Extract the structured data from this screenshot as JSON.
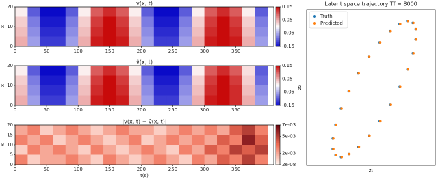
{
  "chart_data": [
    {
      "type": "heatmap",
      "title": "v(x, t)",
      "ylabel": "x",
      "colormap": "bwr",
      "xlim": [
        0,
        410
      ],
      "xticks": [
        0,
        50,
        100,
        150,
        200,
        250,
        300,
        350
      ],
      "ylim": [
        0,
        20
      ],
      "yticks": [
        0,
        10,
        20
      ],
      "clim": [
        -0.15,
        0.15
      ],
      "cticks": [
        -0.15,
        -0.05,
        0.05,
        0.15
      ],
      "x": [
        10,
        30,
        50,
        70,
        90,
        110,
        130,
        150,
        170,
        190,
        210,
        230,
        250,
        270,
        290,
        310,
        330,
        350,
        370,
        390
      ],
      "y": [
        17.5,
        12.5,
        7.5,
        2.5
      ],
      "values": [
        [
          0.01,
          -0.1,
          -0.15,
          -0.15,
          -0.1,
          0.01,
          0.1,
          0.13,
          0.1,
          0.01,
          -0.1,
          -0.15,
          -0.15,
          -0.1,
          0.01,
          0.1,
          0.13,
          0.1,
          0.01,
          -0.1
        ],
        [
          0.03,
          -0.08,
          -0.14,
          -0.14,
          -0.08,
          0.03,
          0.12,
          0.15,
          0.12,
          0.03,
          -0.08,
          -0.14,
          -0.14,
          -0.08,
          0.03,
          0.12,
          0.15,
          0.12,
          0.03,
          -0.08
        ],
        [
          0.04,
          -0.07,
          -0.13,
          -0.13,
          -0.07,
          0.04,
          0.13,
          0.15,
          0.13,
          0.04,
          -0.07,
          -0.13,
          -0.13,
          -0.07,
          0.04,
          0.13,
          0.15,
          0.13,
          0.04,
          -0.07
        ],
        [
          0.05,
          -0.06,
          -0.12,
          -0.12,
          -0.06,
          0.05,
          0.14,
          0.15,
          0.14,
          0.05,
          -0.06,
          -0.12,
          -0.12,
          -0.06,
          0.05,
          0.14,
          0.15,
          0.14,
          0.05,
          -0.06
        ]
      ]
    },
    {
      "type": "heatmap",
      "title": "v̂(x, t)",
      "ylabel": "x",
      "colormap": "bwr",
      "xlim": [
        0,
        410
      ],
      "xticks": [
        0,
        50,
        100,
        150,
        200,
        250,
        300,
        350
      ],
      "ylim": [
        0,
        20
      ],
      "yticks": [
        0,
        10,
        20
      ],
      "clim": [
        -0.15,
        0.15
      ],
      "cticks": [
        -0.15,
        -0.05,
        0.05,
        0.15
      ],
      "x": [
        10,
        30,
        50,
        70,
        90,
        110,
        130,
        150,
        170,
        190,
        210,
        230,
        250,
        270,
        290,
        310,
        330,
        350,
        370,
        390
      ],
      "y": [
        17.5,
        12.5,
        7.5,
        2.5
      ],
      "values": [
        [
          0.01,
          -0.1,
          -0.15,
          -0.15,
          -0.1,
          0.01,
          0.1,
          0.13,
          0.1,
          0.01,
          -0.1,
          -0.15,
          -0.15,
          -0.1,
          0.01,
          0.1,
          0.13,
          0.1,
          0.02,
          -0.1
        ],
        [
          0.03,
          -0.08,
          -0.14,
          -0.14,
          -0.08,
          0.03,
          0.12,
          0.15,
          0.12,
          0.03,
          -0.08,
          -0.14,
          -0.14,
          -0.08,
          0.03,
          0.12,
          0.15,
          0.12,
          0.03,
          -0.09
        ],
        [
          0.04,
          -0.07,
          -0.13,
          -0.13,
          -0.07,
          0.04,
          0.13,
          0.15,
          0.13,
          0.04,
          -0.07,
          -0.13,
          -0.13,
          -0.07,
          0.04,
          0.13,
          0.15,
          0.13,
          0.04,
          -0.07
        ],
        [
          0.05,
          -0.06,
          -0.12,
          -0.12,
          -0.06,
          0.05,
          0.14,
          0.15,
          0.14,
          0.05,
          -0.06,
          -0.12,
          -0.12,
          -0.06,
          0.05,
          0.14,
          0.15,
          0.13,
          0.05,
          -0.06
        ]
      ]
    },
    {
      "type": "heatmap",
      "title": "|v(x, t) − v̂(x, t)|",
      "xlabel": "t(s)",
      "ylabel": "x",
      "colormap": "Reds",
      "xlim": [
        0,
        410
      ],
      "xticks": [
        0,
        50,
        100,
        150,
        200,
        250,
        300,
        350
      ],
      "ylim": [
        0,
        20
      ],
      "yticks": [
        0,
        5,
        10,
        15,
        20
      ],
      "clim": [
        2e-08,
        0.007
      ],
      "cticks": [
        {
          "value": 0.007,
          "label": "7e-03"
        },
        {
          "value": 0.005,
          "label": "5e-03"
        },
        {
          "value": 0.002,
          "label": "2e-03"
        },
        {
          "value": 2e-08,
          "label": "2e-08"
        }
      ],
      "x": [
        10,
        30,
        50,
        70,
        90,
        110,
        130,
        150,
        170,
        190,
        210,
        230,
        250,
        270,
        290,
        310,
        330,
        350,
        370,
        390
      ],
      "y": [
        17.5,
        12.5,
        7.5,
        2.5
      ],
      "values": [
        [
          0.002,
          0.003,
          0.001,
          0.002,
          0.003,
          0.002,
          0.001,
          0.002,
          0.003,
          0.002,
          0.002,
          0.001,
          0.002,
          0.003,
          0.002,
          0.003,
          0.002,
          0.004,
          0.005,
          0.003
        ],
        [
          0.003,
          0.002,
          0.003,
          0.001,
          0.002,
          0.003,
          0.002,
          0.001,
          0.002,
          0.003,
          0.001,
          0.002,
          0.003,
          0.002,
          0.003,
          0.002,
          0.004,
          0.003,
          0.006,
          0.004
        ],
        [
          0.001,
          0.003,
          0.002,
          0.003,
          0.002,
          0.001,
          0.003,
          0.002,
          0.001,
          0.002,
          0.003,
          0.002,
          0.001,
          0.003,
          0.002,
          0.004,
          0.003,
          0.005,
          0.004,
          0.005
        ],
        [
          0.003,
          0.001,
          0.002,
          0.002,
          0.003,
          0.002,
          0.001,
          0.003,
          0.002,
          0.001,
          0.002,
          0.003,
          0.002,
          0.001,
          0.003,
          0.002,
          0.004,
          0.003,
          0.005,
          0.003
        ]
      ]
    },
    {
      "type": "scatter",
      "title": "Latent space trajectory Tf = 8000",
      "xlabel": "z₁",
      "ylabel": "z₂",
      "xlim": [
        -1,
        1
      ],
      "ylim": [
        -1,
        1
      ],
      "legend": "upper left",
      "series": [
        {
          "name": "Truth",
          "color": "#1f77b4",
          "x": [
            0.65,
            0.565,
            0.445,
            0.297,
            0.133,
            -0.036,
            -0.2,
            -0.346,
            -0.467,
            -0.551,
            -0.595,
            -0.595,
            -0.55,
            -0.465,
            -0.345,
            -0.197,
            -0.033,
            0.136,
            0.3,
            0.446,
            0.567,
            0.651,
            0.695,
            0.695
          ],
          "y": [
            0.83,
            0.853,
            0.816,
            0.722,
            0.578,
            0.393,
            0.18,
            -0.047,
            -0.272,
            -0.48,
            -0.656,
            -0.789,
            -0.87,
            -0.893,
            -0.856,
            -0.762,
            -0.618,
            -0.433,
            -0.22,
            0.007,
            0.232,
            0.44,
            0.616,
            0.749
          ]
        },
        {
          "name": "Predicted",
          "color": "#ff7f0e",
          "x": [
            0.66,
            0.575,
            0.455,
            0.307,
            0.143,
            -0.026,
            -0.19,
            -0.336,
            -0.457,
            -0.541,
            -0.585,
            -0.585,
            -0.54,
            -0.455,
            -0.335,
            -0.187,
            -0.023,
            0.146,
            0.31,
            0.456,
            0.577,
            0.661,
            0.705,
            0.705
          ],
          "y": [
            0.83,
            0.853,
            0.816,
            0.722,
            0.578,
            0.393,
            0.18,
            -0.047,
            -0.272,
            -0.48,
            -0.656,
            -0.789,
            -0.87,
            -0.893,
            -0.856,
            -0.762,
            -0.618,
            -0.433,
            -0.22,
            0.007,
            0.232,
            0.44,
            0.616,
            0.749
          ]
        }
      ]
    }
  ]
}
